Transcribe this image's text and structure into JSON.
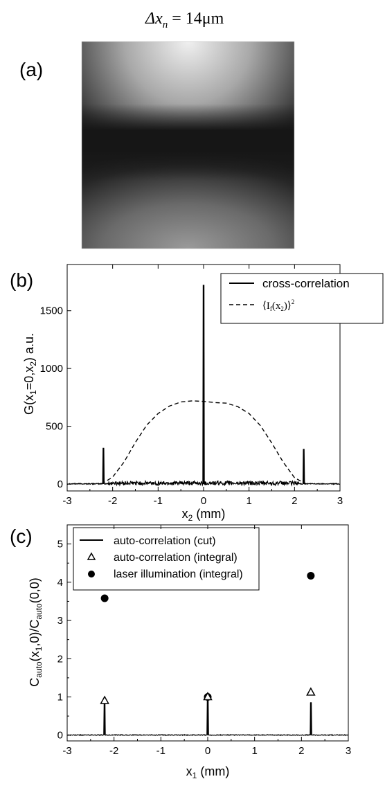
{
  "figure": {
    "header": {
      "main": "Δx",
      "sub": "n",
      "rest": " = 14μm"
    },
    "panel_a": {
      "label": "(a)",
      "image": {
        "kind": "speckle intensity image",
        "bright_regions": [
          "top",
          "bottom"
        ],
        "dark_band": "middle",
        "colormap": "grayscale"
      }
    }
  },
  "chart_data": [
    {
      "panel": "(b)",
      "type": "line",
      "xlabel": {
        "main": "x",
        "sub": "2",
        "rest": " (mm)"
      },
      "ylabel": {
        "p1": "G(x",
        "s1": "1",
        "p2": "=0,x",
        "s2": "2",
        "p3": ")  a.u."
      },
      "xlim": [
        -3,
        3
      ],
      "ylim": [
        -60,
        1900
      ],
      "xticks": [
        "-3",
        "-2",
        "-1",
        "0",
        "1",
        "2",
        "3"
      ],
      "yticks": [
        "0",
        "500",
        "1000",
        "1500"
      ],
      "legend_position": "top-right",
      "series": [
        {
          "name": "cross-correlation",
          "style": "solid",
          "baseline": 0,
          "peaks": [
            {
              "x": -2.2,
              "y": 310
            },
            {
              "x": 0,
              "y": 1720
            },
            {
              "x": 2.2,
              "y": 300
            }
          ],
          "noise_range_x": [
            -2.1,
            2.1
          ],
          "noise_amplitude": 35
        },
        {
          "name": "⟨I_f(x_2)⟩^2",
          "legend_parts": {
            "p1": "⟨I",
            "s1": "f",
            "p2": "(x",
            "s2": "2",
            "p3": ")⟩",
            "sup": "2"
          },
          "style": "dashed",
          "x": [
            -2.25,
            -2.0,
            -1.75,
            -1.5,
            -1.25,
            -1.0,
            -0.75,
            -0.5,
            -0.25,
            0.0,
            0.25,
            0.5,
            0.75,
            1.0,
            1.25,
            1.5,
            1.75,
            2.0,
            2.25
          ],
          "y": [
            0,
            60,
            190,
            360,
            510,
            610,
            675,
            710,
            720,
            715,
            705,
            700,
            670,
            610,
            505,
            355,
            190,
            55,
            0
          ]
        }
      ]
    },
    {
      "panel": "(c)",
      "type": "scatter",
      "xlabel": {
        "main": "x",
        "sub": "1",
        "rest": " (mm)"
      },
      "ylabel": {
        "a": "C",
        "as": "auto",
        "b": "(x",
        "bs": "1",
        "c": ",0)/C",
        "cs": "auto",
        "d": "(0,0)"
      },
      "xlim": [
        -3,
        3
      ],
      "ylim": [
        -0.15,
        5.5
      ],
      "xticks": [
        "-3",
        "-2",
        "-1",
        "0",
        "1",
        "2",
        "3"
      ],
      "yticks": [
        "0",
        "1",
        "2",
        "3",
        "4",
        "5"
      ],
      "legend_position": "top-left",
      "series": [
        {
          "name": "auto-correlation (cut)",
          "style": "solid line",
          "baseline": 0,
          "peaks": [
            {
              "x": -2.2,
              "y": 0.88
            },
            {
              "x": 0,
              "y": 1.0
            },
            {
              "x": 2.2,
              "y": 0.85
            }
          ],
          "noise_amplitude": 0.02
        },
        {
          "name": "auto-correlation (integral)",
          "marker": "open-triangle",
          "points": [
            {
              "x": -2.2,
              "y": 0.9
            },
            {
              "x": 0,
              "y": 1.0
            },
            {
              "x": 2.2,
              "y": 1.12
            }
          ]
        },
        {
          "name": "laser illumination (integral)",
          "marker": "filled-circle",
          "points": [
            {
              "x": -2.2,
              "y": 3.58
            },
            {
              "x": 0,
              "y": 1.0
            },
            {
              "x": 2.2,
              "y": 4.17
            }
          ]
        }
      ]
    }
  ]
}
